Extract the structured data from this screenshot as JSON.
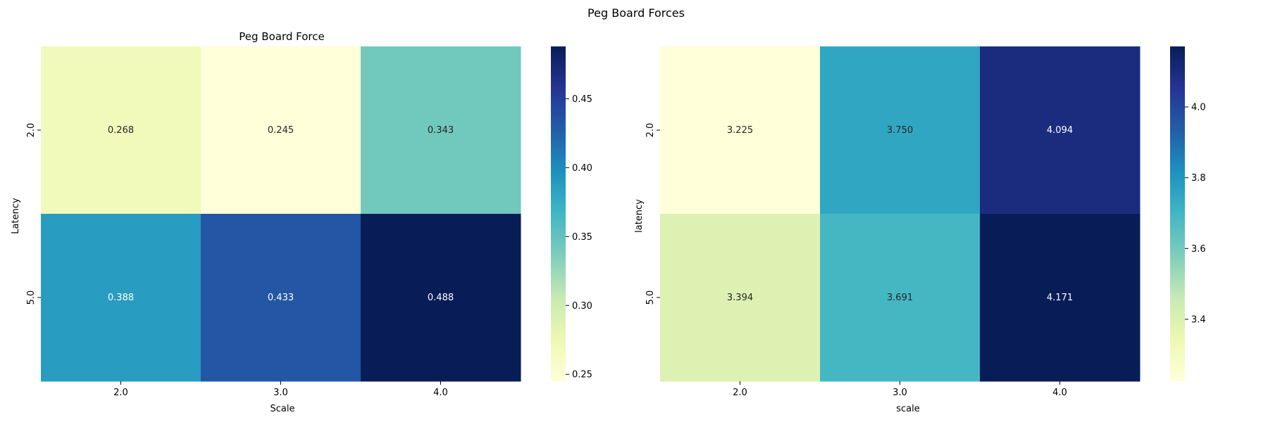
{
  "figure": {
    "title": "Peg Board Forces"
  },
  "chart_data": [
    {
      "type": "heatmap",
      "title": "Peg Board Force",
      "xlabel": "Scale",
      "ylabel": "Latency",
      "x_categories": [
        "2.0",
        "3.0",
        "4.0"
      ],
      "y_categories": [
        "2.0",
        "5.0"
      ],
      "values": [
        [
          0.268,
          0.245,
          0.343
        ],
        [
          0.388,
          0.433,
          0.488
        ]
      ],
      "cell_labels": [
        [
          "0.268",
          "0.245",
          "0.343"
        ],
        [
          "0.388",
          "0.433",
          "0.488"
        ]
      ],
      "colormap": "YlGnBu",
      "color_range": [
        0.245,
        0.488
      ],
      "colorbar_ticks": [
        0.25,
        0.3,
        0.35,
        0.4,
        0.45
      ],
      "colorbar_tick_labels": [
        "0.25",
        "0.30",
        "0.35",
        "0.40",
        "0.45"
      ]
    },
    {
      "type": "heatmap",
      "title": "",
      "xlabel": "scale",
      "ylabel": "latency",
      "x_categories": [
        "2.0",
        "3.0",
        "4.0"
      ],
      "y_categories": [
        "2.0",
        "5.0"
      ],
      "values": [
        [
          3.225,
          3.75,
          4.094
        ],
        [
          3.394,
          3.691,
          4.171
        ]
      ],
      "cell_labels": [
        [
          "3.225",
          "3.750",
          "4.094"
        ],
        [
          "3.394",
          "3.691",
          "4.171"
        ]
      ],
      "colormap": "YlGnBu",
      "color_range": [
        3.225,
        4.171
      ],
      "colorbar_ticks": [
        3.4,
        3.6,
        3.8,
        4.0
      ],
      "colorbar_tick_labels": [
        "3.4",
        "3.6",
        "3.8",
        "4.0"
      ]
    }
  ]
}
